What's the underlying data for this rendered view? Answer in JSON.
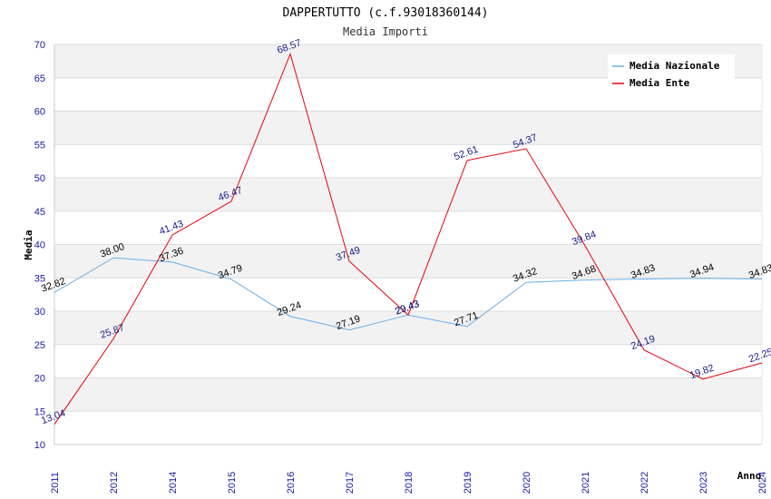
{
  "chart_data": {
    "type": "line",
    "title": "DAPPERTUTTO (c.f.93018360144)",
    "subtitle": "Media Importi",
    "xlabel": "Anno",
    "ylabel": "Media",
    "ylim": [
      10,
      70
    ],
    "yticks": [
      "10",
      "15",
      "20",
      "25",
      "30",
      "35",
      "40",
      "45",
      "50",
      "55",
      "60",
      "65",
      "70"
    ],
    "categories": [
      "2011",
      "2012",
      "2014",
      "2015",
      "2016",
      "2017",
      "2018",
      "2019",
      "2020",
      "2021",
      "2022",
      "2023",
      "2024"
    ],
    "legend_position": "top-right",
    "grid": true,
    "series": [
      {
        "name": "Media Nazionale",
        "color": "#6aaee8",
        "values": [
          32.82,
          38.0,
          37.36,
          34.79,
          29.24,
          27.19,
          29.43,
          27.71,
          34.32,
          34.68,
          34.83,
          34.94,
          34.83
        ],
        "labels": [
          "32.82",
          "38.00",
          "37.36",
          "34.79",
          "29.24",
          "27.19",
          "29.43",
          "27.71",
          "34.32",
          "34.68",
          "34.83",
          "34.94",
          "34.83"
        ]
      },
      {
        "name": "Media Ente",
        "color": "#e8000b",
        "values": [
          13.04,
          25.87,
          41.43,
          46.47,
          68.57,
          37.49,
          29.43,
          52.61,
          54.37,
          39.84,
          24.19,
          19.82,
          22.25
        ],
        "labels": [
          "13.04",
          "25.87",
          "41.43",
          "46.47",
          "68.57",
          "37.49",
          "29.43",
          "52.61",
          "54.37",
          "39.84",
          "24.19",
          "19.82",
          "22.25"
        ]
      }
    ]
  }
}
